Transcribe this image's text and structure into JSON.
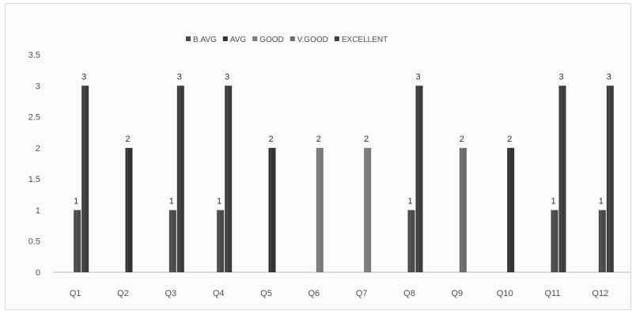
{
  "colors": {
    "B.AVG": "#4a4a4a",
    "AVG": "#333333",
    "GOOD": "#7a7a7a",
    "V.GOOD": "#6b6b6b",
    "EXCELLENT": "#3c3c3c",
    "axis": "#bdbdbd",
    "text": "#4f4f4f"
  },
  "chart_data": {
    "type": "bar",
    "title": "",
    "xlabel": "",
    "ylabel": "",
    "ylim": [
      0,
      3.5
    ],
    "yticks": [
      "0",
      "0.5",
      "1",
      "1.5",
      "2",
      "2.5",
      "3",
      "3.5"
    ],
    "grid": false,
    "legend_position": "top",
    "categories": [
      "Q1",
      "Q2",
      "Q3",
      "Q4",
      "Q5",
      "Q6",
      "Q7",
      "Q8",
      "Q9",
      "Q10",
      "Q11",
      "Q12"
    ],
    "series": [
      {
        "name": "B.AVG",
        "values": [
          1,
          0,
          1,
          1,
          0,
          0,
          0,
          1,
          0,
          0,
          1,
          1
        ]
      },
      {
        "name": "AVG",
        "values": [
          0,
          2,
          0,
          0,
          2,
          0,
          0,
          0,
          0,
          2,
          0,
          0
        ]
      },
      {
        "name": "GOOD",
        "values": [
          0,
          0,
          0,
          0,
          0,
          2,
          2,
          0,
          0,
          0,
          0,
          0
        ]
      },
      {
        "name": "V.GOOD",
        "values": [
          0,
          0,
          0,
          0,
          0,
          0,
          0,
          0,
          2,
          0,
          0,
          0
        ]
      },
      {
        "name": "EXCELLENT",
        "values": [
          3,
          0,
          3,
          3,
          0,
          0,
          0,
          3,
          0,
          0,
          3,
          3
        ]
      }
    ],
    "data_labels": true
  }
}
